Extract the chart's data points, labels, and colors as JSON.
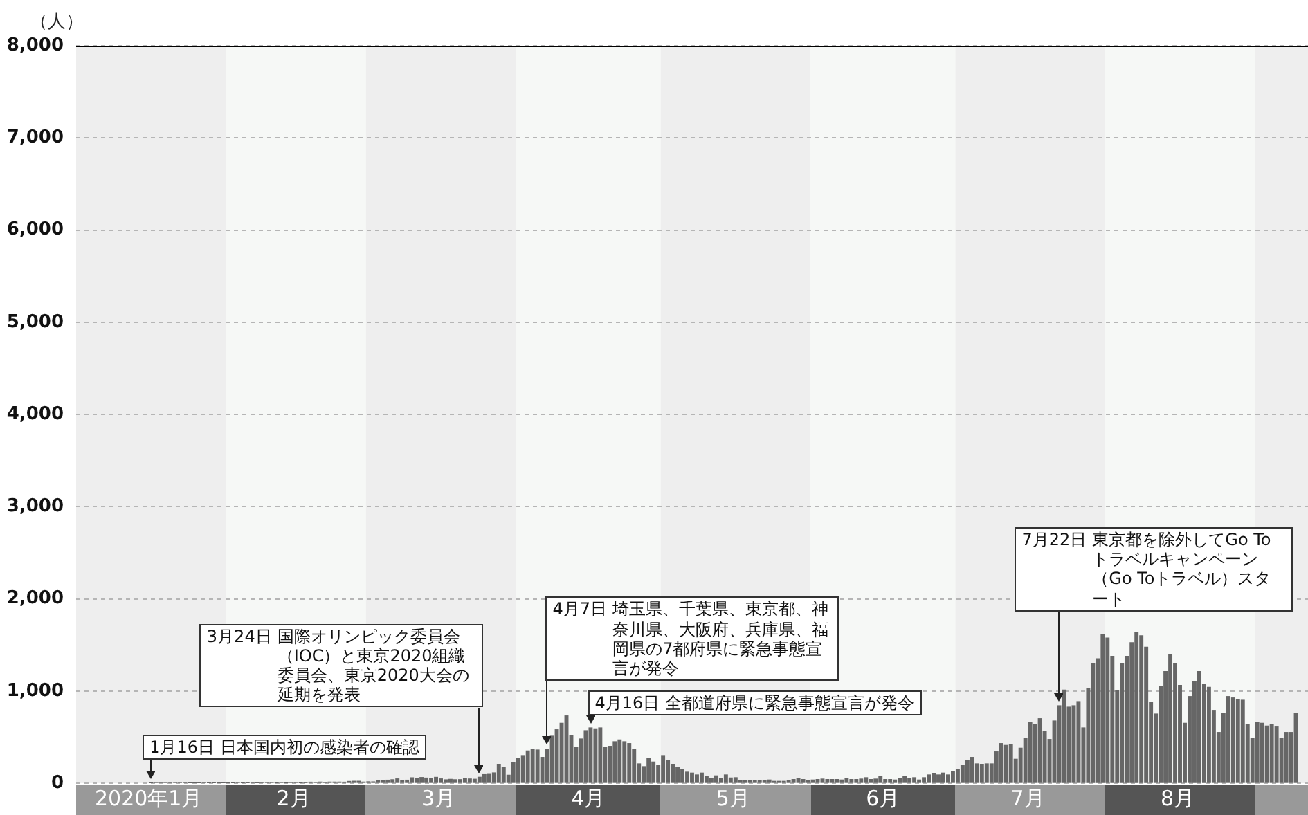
{
  "chart_data": {
    "type": "bar",
    "ylabel": "（人）",
    "color": "#666666",
    "x": [
      "2020-01-16",
      "2020-01-17",
      "2020-01-18",
      "2020-01-19",
      "2020-01-20",
      "2020-01-21",
      "2020-01-22",
      "2020-01-23",
      "2020-01-24",
      "2020-01-25",
      "2020-01-26",
      "2020-01-27",
      "2020-01-28",
      "2020-01-29",
      "2020-01-30",
      "2020-01-31",
      "2020-02-01",
      "2020-02-02",
      "2020-02-03",
      "2020-02-04",
      "2020-02-05",
      "2020-02-06",
      "2020-02-07",
      "2020-02-08",
      "2020-02-09",
      "2020-02-10",
      "2020-02-11",
      "2020-02-12",
      "2020-02-13",
      "2020-02-14",
      "2020-02-15",
      "2020-02-16",
      "2020-02-17",
      "2020-02-18",
      "2020-02-19",
      "2020-02-20",
      "2020-02-21",
      "2020-02-22",
      "2020-02-23",
      "2020-02-24",
      "2020-02-25",
      "2020-02-26",
      "2020-02-27",
      "2020-02-28",
      "2020-02-29",
      "2020-03-01",
      "2020-03-02",
      "2020-03-03",
      "2020-03-04",
      "2020-03-05",
      "2020-03-06",
      "2020-03-07",
      "2020-03-08",
      "2020-03-09",
      "2020-03-10",
      "2020-03-11",
      "2020-03-12",
      "2020-03-13",
      "2020-03-14",
      "2020-03-15",
      "2020-03-16",
      "2020-03-17",
      "2020-03-18",
      "2020-03-19",
      "2020-03-20",
      "2020-03-21",
      "2020-03-22",
      "2020-03-23",
      "2020-03-24",
      "2020-03-25",
      "2020-03-26",
      "2020-03-27",
      "2020-03-28",
      "2020-03-29",
      "2020-03-30",
      "2020-03-31",
      "2020-04-01",
      "2020-04-02",
      "2020-04-03",
      "2020-04-04",
      "2020-04-05",
      "2020-04-06",
      "2020-04-07",
      "2020-04-08",
      "2020-04-09",
      "2020-04-10",
      "2020-04-11",
      "2020-04-12",
      "2020-04-13",
      "2020-04-14",
      "2020-04-15",
      "2020-04-16",
      "2020-04-17",
      "2020-04-18",
      "2020-04-19",
      "2020-04-20",
      "2020-04-21",
      "2020-04-22",
      "2020-04-23",
      "2020-04-24",
      "2020-04-25",
      "2020-04-26",
      "2020-04-27",
      "2020-04-28",
      "2020-04-29",
      "2020-04-30",
      "2020-05-01",
      "2020-05-02",
      "2020-05-03",
      "2020-05-04",
      "2020-05-05",
      "2020-05-06",
      "2020-05-07",
      "2020-05-08",
      "2020-05-09",
      "2020-05-10",
      "2020-05-11",
      "2020-05-12",
      "2020-05-13",
      "2020-05-14",
      "2020-05-15",
      "2020-05-16",
      "2020-05-17",
      "2020-05-18",
      "2020-05-19",
      "2020-05-20",
      "2020-05-21",
      "2020-05-22",
      "2020-05-23",
      "2020-05-24",
      "2020-05-25",
      "2020-05-26",
      "2020-05-27",
      "2020-05-28",
      "2020-05-29",
      "2020-05-30",
      "2020-05-31",
      "2020-06-01",
      "2020-06-02",
      "2020-06-03",
      "2020-06-04",
      "2020-06-05",
      "2020-06-06",
      "2020-06-07",
      "2020-06-08",
      "2020-06-09",
      "2020-06-10",
      "2020-06-11",
      "2020-06-12",
      "2020-06-13",
      "2020-06-14",
      "2020-06-15",
      "2020-06-16",
      "2020-06-17",
      "2020-06-18",
      "2020-06-19",
      "2020-06-20",
      "2020-06-21",
      "2020-06-22",
      "2020-06-23",
      "2020-06-24",
      "2020-06-25",
      "2020-06-26",
      "2020-06-27",
      "2020-06-28",
      "2020-06-29",
      "2020-06-30",
      "2020-07-01",
      "2020-07-02",
      "2020-07-03",
      "2020-07-04",
      "2020-07-05",
      "2020-07-06",
      "2020-07-07",
      "2020-07-08",
      "2020-07-09",
      "2020-07-10",
      "2020-07-11",
      "2020-07-12",
      "2020-07-13",
      "2020-07-14",
      "2020-07-15",
      "2020-07-16",
      "2020-07-17",
      "2020-07-18",
      "2020-07-19",
      "2020-07-20",
      "2020-07-21",
      "2020-07-22",
      "2020-07-23",
      "2020-07-24",
      "2020-07-25",
      "2020-07-26",
      "2020-07-27",
      "2020-07-28",
      "2020-07-29",
      "2020-07-30",
      "2020-07-31",
      "2020-08-01",
      "2020-08-02",
      "2020-08-03",
      "2020-08-04",
      "2020-08-05",
      "2020-08-06",
      "2020-08-07",
      "2020-08-08",
      "2020-08-09",
      "2020-08-10",
      "2020-08-11",
      "2020-08-12",
      "2020-08-13",
      "2020-08-14",
      "2020-08-15",
      "2020-08-16",
      "2020-08-17",
      "2020-08-18",
      "2020-08-19",
      "2020-08-20",
      "2020-08-21",
      "2020-08-22",
      "2020-08-23",
      "2020-08-24",
      "2020-08-25",
      "2020-08-26",
      "2020-08-27",
      "2020-08-28",
      "2020-08-29",
      "2020-08-30",
      "2020-08-31",
      "2020-09-01",
      "2020-09-02",
      "2020-09-03",
      "2020-09-04",
      "2020-09-05",
      "2020-09-06",
      "2020-09-07",
      "2020-09-08",
      "2020-09-09"
    ],
    "values": [
      1,
      0,
      0,
      0,
      0,
      0,
      0,
      0,
      1,
      1,
      1,
      0,
      3,
      2,
      4,
      3,
      3,
      1,
      0,
      3,
      2,
      0,
      1,
      0,
      0,
      0,
      1,
      0,
      4,
      8,
      9,
      5,
      6,
      11,
      9,
      12,
      9,
      12,
      12,
      12,
      11,
      19,
      21,
      21,
      12,
      15,
      14,
      29,
      31,
      33,
      38,
      47,
      32,
      33,
      59,
      54,
      62,
      56,
      51,
      64,
      47,
      37,
      42,
      38,
      39,
      53,
      46,
      43,
      65,
      93,
      96,
      112,
      200,
      173,
      87,
      220,
      270,
      300,
      350,
      370,
      360,
      280,
      370,
      510,
      580,
      650,
      730,
      520,
      390,
      480,
      570,
      600,
      590,
      600,
      390,
      400,
      450,
      470,
      450,
      430,
      370,
      210,
      180,
      270,
      230,
      190,
      300,
      250,
      200,
      175,
      150,
      120,
      110,
      90,
      110,
      70,
      50,
      80,
      55,
      90,
      57,
      60,
      30,
      30,
      30,
      25,
      30,
      25,
      35,
      20,
      20,
      20,
      30,
      40,
      50,
      40,
      25,
      35,
      40,
      45,
      40,
      40,
      40,
      35,
      50,
      40,
      40,
      45,
      60,
      40,
      45,
      70,
      40,
      40,
      35,
      55,
      70,
      55,
      60,
      35,
      60,
      90,
      105,
      90,
      110,
      90,
      130,
      150,
      190,
      250,
      280,
      210,
      200,
      210,
      210,
      340,
      430,
      410,
      420,
      260,
      380,
      490,
      660,
      640,
      700,
      560,
      475,
      675,
      840,
      1010,
      825,
      840,
      885,
      600,
      1025,
      1300,
      1350,
      1610,
      1575,
      1375,
      1000,
      1300,
      1375,
      1525,
      1635,
      1600,
      1475,
      875,
      750,
      1050,
      1210,
      1390,
      1300,
      1060,
      650,
      940,
      1100,
      1210,
      1075,
      1040,
      790,
      550,
      760,
      940,
      925,
      910,
      900,
      640,
      490,
      660,
      650,
      620,
      640,
      610,
      490,
      550,
      550,
      760
    ],
    "xlim": [
      "2020-01-01",
      "2020-09-12"
    ],
    "ylim": [
      0,
      8000
    ],
    "yticks": [
      0,
      {
        "value": 1000,
        "label": "1,000"
      },
      {
        "value": 2000,
        "label": "2,000"
      },
      {
        "value": 3000,
        "label": "3,000"
      },
      {
        "value": 4000,
        "label": "4,000"
      },
      {
        "value": 5000,
        "label": "5,000"
      },
      {
        "value": 6000,
        "label": "6,000"
      },
      {
        "value": 7000,
        "label": "7,000"
      },
      {
        "value": 8000,
        "label": "8,000"
      }
    ],
    "xticks": [
      {
        "value": "2020-01-16",
        "label": "2020年1月"
      },
      {
        "value": "2020-02-15",
        "label": "2月"
      },
      {
        "value": "2020-03-16",
        "label": "3月"
      },
      {
        "value": "2020-04-16",
        "label": "4月"
      },
      {
        "value": "2020-05-16",
        "label": "5月"
      },
      {
        "value": "2020-06-16",
        "label": "6月"
      },
      {
        "value": "2020-07-16",
        "label": "7月"
      },
      {
        "value": "2020-08-16",
        "label": "8月"
      }
    ],
    "bands": [
      {
        "axis": "x",
        "from": "2020-01-01",
        "to": "2020-02-01",
        "color": "#eeeeee"
      },
      {
        "axis": "x",
        "from": "2020-02-01",
        "to": "2020-03-01",
        "color": "#f6f8f6"
      },
      {
        "axis": "x",
        "from": "2020-03-01",
        "to": "2020-04-01",
        "color": "#eeeeee"
      },
      {
        "axis": "x",
        "from": "2020-04-01",
        "to": "2020-05-01",
        "color": "#f6f8f6"
      },
      {
        "axis": "x",
        "from": "2020-05-01",
        "to": "2020-06-01",
        "color": "#eeeeee"
      },
      {
        "axis": "x",
        "from": "2020-06-01",
        "to": "2020-07-01",
        "color": "#f6f8f6"
      },
      {
        "axis": "x",
        "from": "2020-07-01",
        "to": "2020-08-01",
        "color": "#eeeeee"
      },
      {
        "axis": "x",
        "from": "2020-08-01",
        "to": "2020-09-01",
        "color": "#f6f8f6"
      },
      {
        "axis": "x",
        "from": "2020-09-01",
        "to": "2020-09-12",
        "color": "#eeeeee"
      }
    ],
    "annotations": [
      {
        "text": "1月16日 日本国内初の感染者の確認",
        "x": "2020-01-16",
        "y": 1
      },
      {
        "text": "3月24日 国際オリンピック委員会（IOC）と東京2020組織委員会、東京2020大会の延期を発表",
        "x": "2020-03-24",
        "y": 65
      },
      {
        "text": "4月7日 埼玉県、千葉県、東京都、神奈川県、大阪府、兵庫県、福岡県の7都府県に緊急事態宣言が発令",
        "x": "2020-04-07",
        "y": 370
      },
      {
        "text": "4月16日 全都道府県に緊急事態宣言が発令",
        "x": "2020-04-16",
        "y": 600
      },
      {
        "text": "7月22日 東京都を除外してGo To トラベルキャンペーン（Go Toトラベル）スタート",
        "x": "2020-07-22",
        "y": 840
      }
    ],
    "grid": "y"
  }
}
